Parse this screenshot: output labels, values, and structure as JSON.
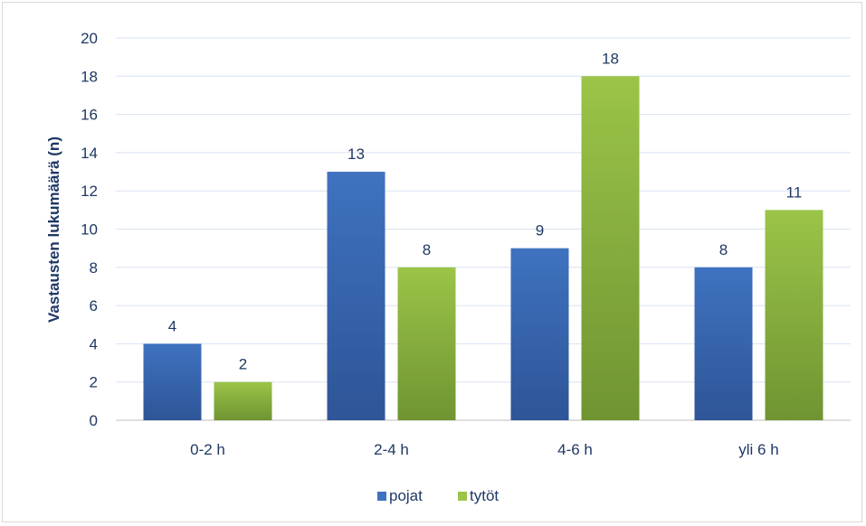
{
  "chart_data": {
    "type": "bar",
    "categories": [
      "0-2 h",
      "2-4 h",
      "4-6 h",
      "yli 6 h"
    ],
    "series": [
      {
        "name": "pojat",
        "values": [
          4,
          13,
          9,
          8
        ],
        "color": "#3f72c0",
        "color_dark": "#2e5597"
      },
      {
        "name": "tytöt",
        "values": [
          2,
          8,
          18,
          11
        ],
        "color": "#9bc448",
        "color_dark": "#6f9432"
      }
    ],
    "ylabel": "Vastausten lukumäärä (n)",
    "xlabel": "",
    "ylim": [
      0,
      20
    ],
    "yticks": [
      0,
      2,
      4,
      6,
      8,
      10,
      12,
      14,
      16,
      18,
      20
    ],
    "grid": true,
    "legend_position": "bottom",
    "data_labels": true
  }
}
